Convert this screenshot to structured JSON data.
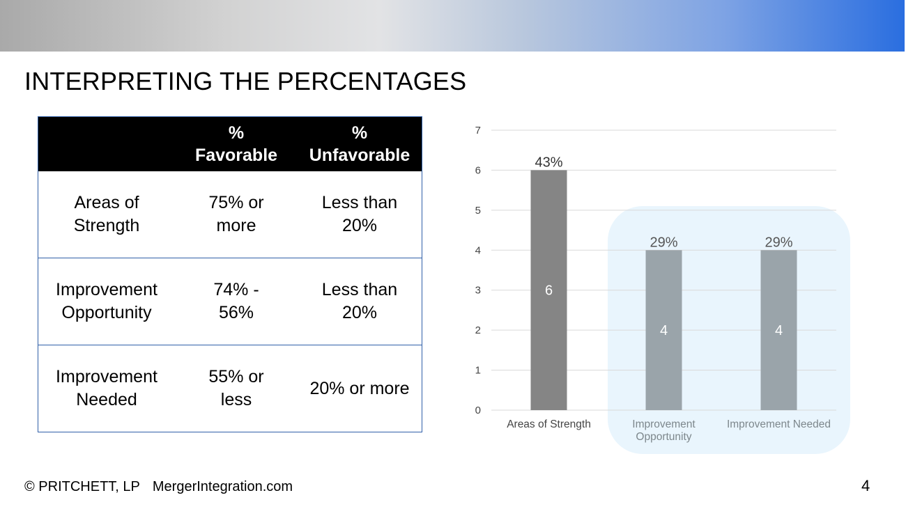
{
  "slide": {
    "title": "INTERPRETING THE PERCENTAGES",
    "footer_copyright": "© PRITCHETT, LP",
    "footer_site": "MergerIntegration.com",
    "page_number": "4"
  },
  "table": {
    "headers": [
      {
        "symbol": "",
        "word": ""
      },
      {
        "symbol": "%",
        "word": "Favorable"
      },
      {
        "symbol": "%",
        "word": "Unfavorable"
      }
    ],
    "rows": [
      {
        "label": [
          "Areas of",
          "Strength"
        ],
        "favorable": [
          "75% or",
          "more"
        ],
        "unfavorable": [
          "Less than",
          "20%"
        ]
      },
      {
        "label": [
          "Improvement",
          "Opportunity"
        ],
        "favorable": [
          "74% -",
          "56%"
        ],
        "unfavorable": [
          "Less than",
          "20%"
        ]
      },
      {
        "label": [
          "Improvement",
          "Needed"
        ],
        "favorable": [
          "55% or",
          "less"
        ],
        "unfavorable": [
          "20% or more"
        ]
      }
    ]
  },
  "colors": {
    "strength_bar": "#858585",
    "improvement_bar": "#9aa4aa",
    "highlight": "#e9f5fd",
    "grid": "#d9d9d9"
  },
  "chart_data": {
    "type": "bar",
    "categories": [
      [
        "Areas of Strength"
      ],
      [
        "Improvement",
        "Opportunity"
      ],
      [
        "Improvement Needed"
      ]
    ],
    "values": [
      6,
      4,
      4
    ],
    "percent_labels": [
      "43%",
      "29%",
      "29%"
    ],
    "ylim": [
      0,
      7
    ],
    "yticks": [
      0,
      1,
      2,
      3,
      4,
      5,
      6,
      7
    ],
    "grid": true,
    "highlighted_categories": [
      1,
      2
    ]
  }
}
